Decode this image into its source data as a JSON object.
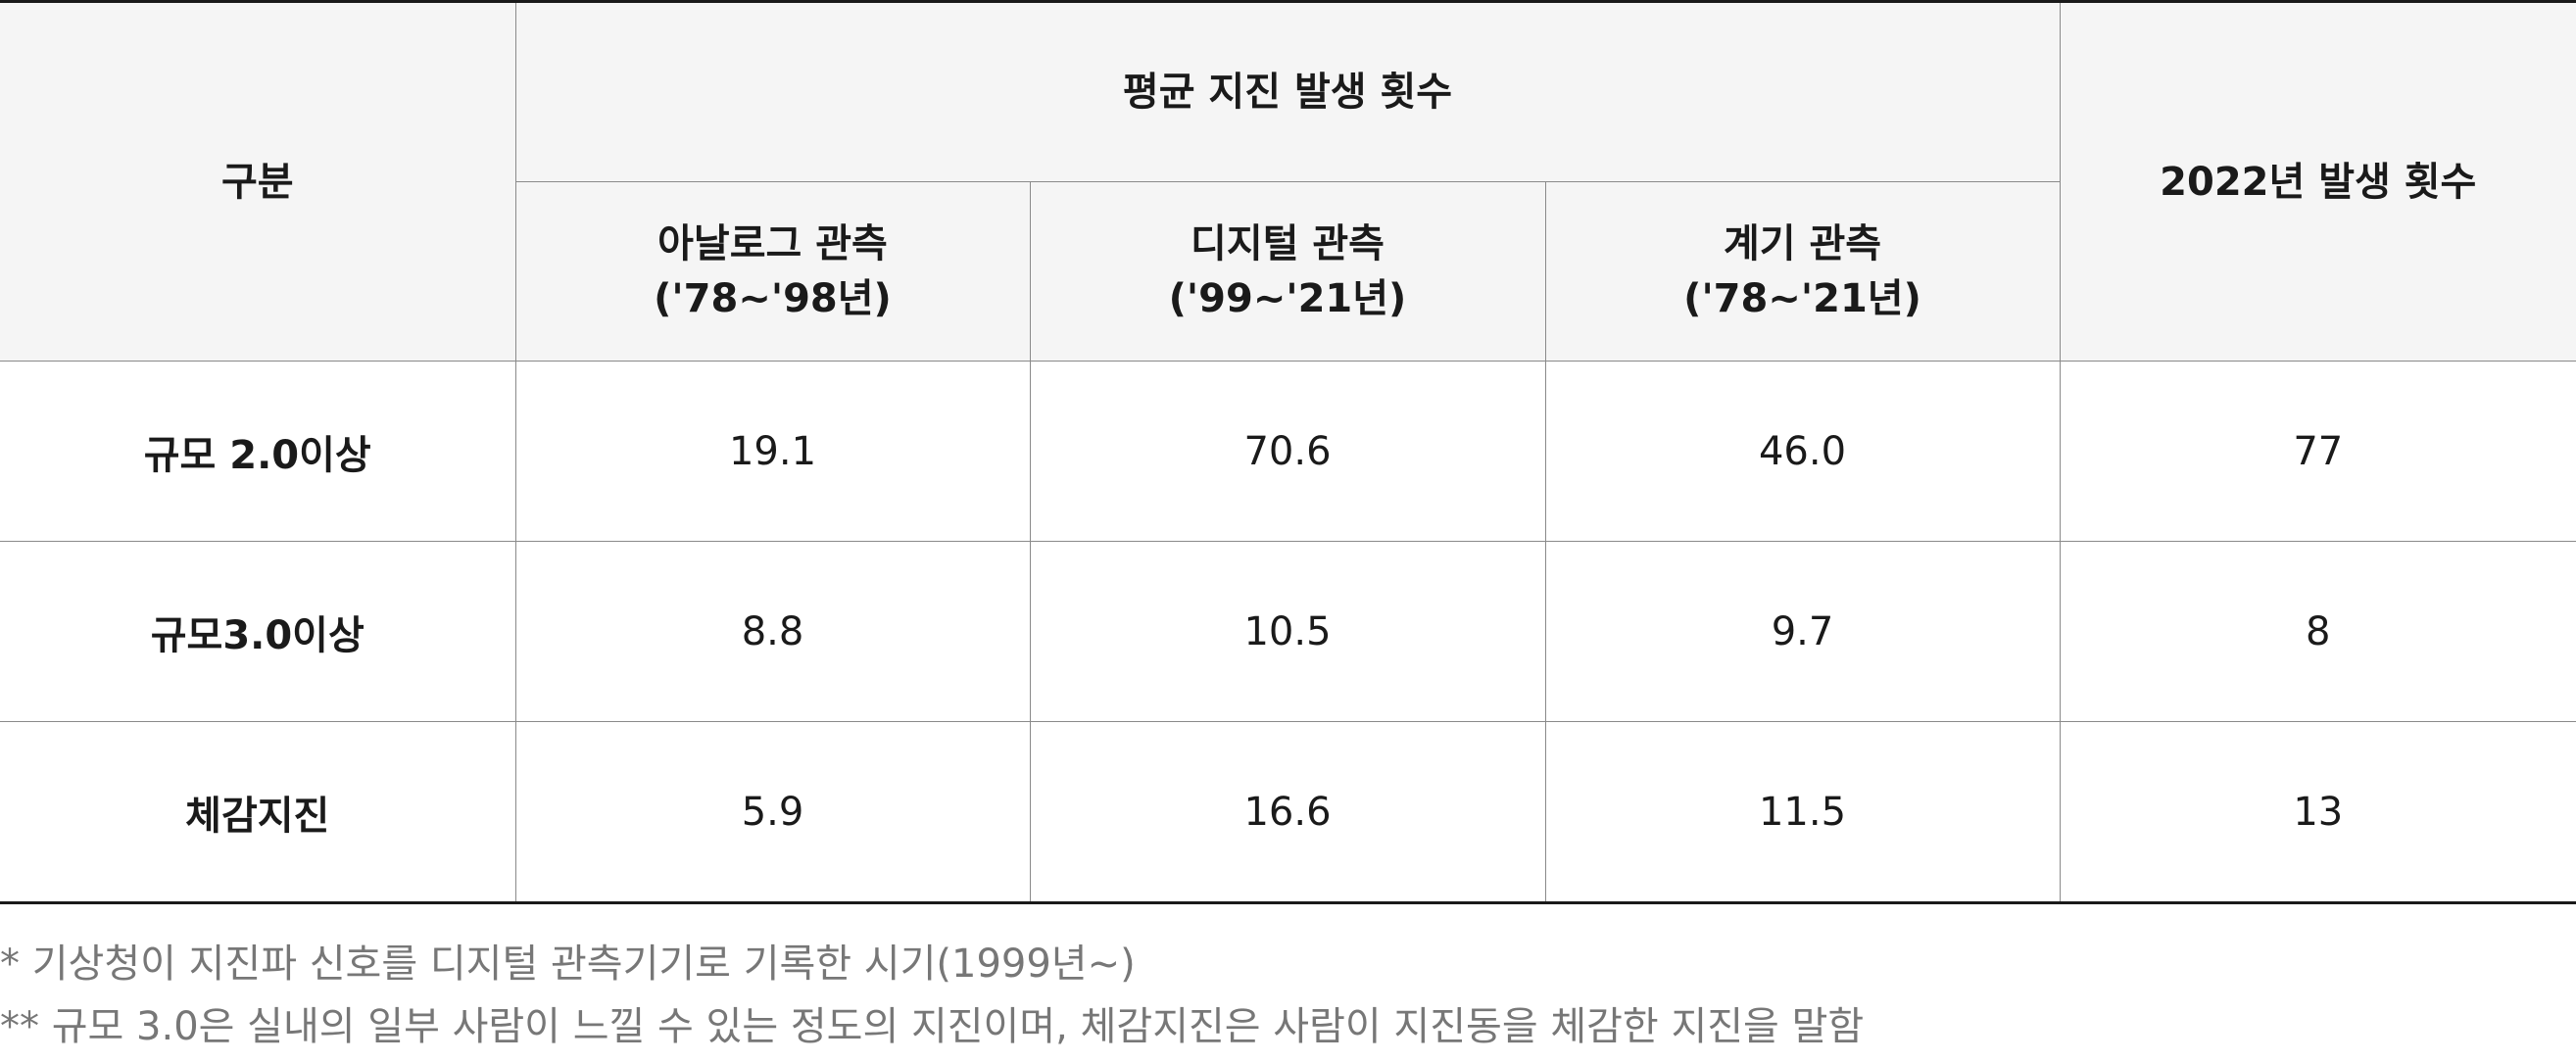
{
  "table": {
    "header": {
      "category": "구분",
      "group": "평균 지진 발생 횟수",
      "col_2022": "2022년 발생 횟수",
      "sub_columns": [
        {
          "line1": "아날로그 관측",
          "line2": "('78~'98년)"
        },
        {
          "line1": "디지털 관측",
          "line2": "('99~'21년)"
        },
        {
          "line1": "계기 관측",
          "line2": "('78~'21년)"
        }
      ]
    },
    "rows": [
      {
        "label": "규모 2.0이상",
        "values": [
          "19.1",
          "70.6",
          "46.0",
          "77"
        ]
      },
      {
        "label": "규모3.0이상",
        "values": [
          "8.8",
          "10.5",
          "9.7",
          "8"
        ]
      },
      {
        "label": "체감지진",
        "values": [
          "5.9",
          "16.6",
          "11.5",
          "13"
        ]
      }
    ]
  },
  "notes": [
    "* 기상청이 지진파 신호를 디지털 관측기기로 기록한 시기(1999년~)",
    "** 규모 3.0은 실내의 일부 사람이 느낄 수 있는 정도의 지진이며, 체감지진은 사람이 지진동을 체감한 지진을 말함"
  ],
  "colors": {
    "header_bg": "#f5f5f5",
    "border": "#8a8a8a",
    "rule": "#1a1a1a",
    "note_text": "#777777"
  }
}
